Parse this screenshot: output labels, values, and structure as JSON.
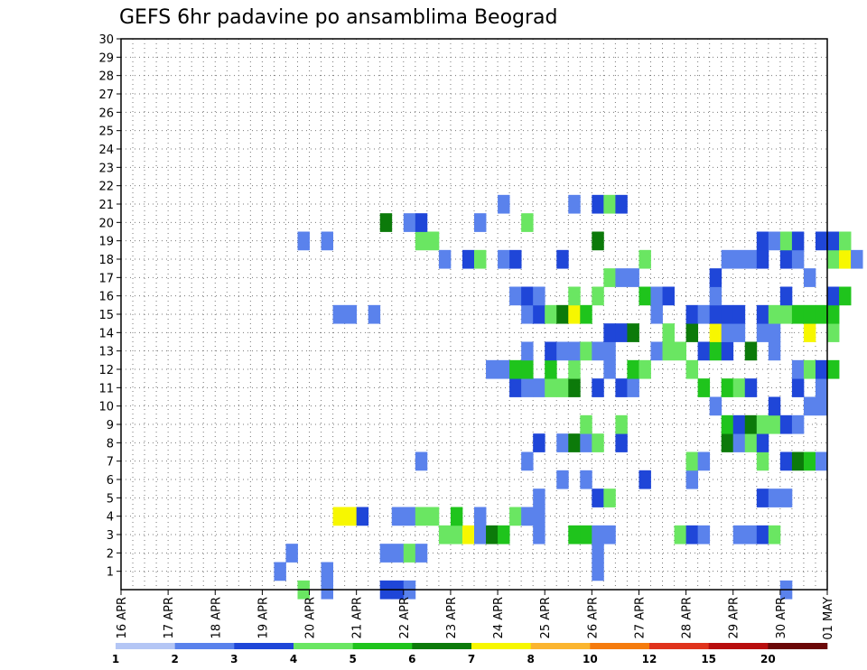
{
  "chart_data": {
    "type": "heatmap",
    "title": "GEFS 6hr padavine po ansamblima Beograd",
    "xlabel": "",
    "ylabel": "",
    "x_tick_labels": [
      "16 APR",
      "17 APR",
      "18 APR",
      "19 APR",
      "20 APR",
      "21 APR",
      "22 APR",
      "23 APR",
      "24 APR",
      "25 APR",
      "26 APR",
      "27 APR",
      "28 APR",
      "29 APR",
      "30 APR",
      "01 MAY"
    ],
    "x_step_hours": 6,
    "y_tick_labels": [
      "1",
      "2",
      "3",
      "4",
      "5",
      "6",
      "7",
      "8",
      "9",
      "10",
      "11",
      "12",
      "13",
      "14",
      "15",
      "16",
      "17",
      "18",
      "19",
      "20",
      "21",
      "22",
      "23",
      "24",
      "25",
      "26",
      "27",
      "28",
      "29",
      "30"
    ],
    "ylim": [
      0,
      30
    ],
    "grid": true,
    "colorbar": {
      "position": "bottom",
      "tick_labels": [
        "1",
        "2",
        "3",
        "4",
        "5",
        "6",
        "7",
        "8",
        "10",
        "12",
        "15",
        "20"
      ],
      "colors": [
        "#b4c6f5",
        "#5a82ec",
        "#1f46d8",
        "#6ae662",
        "#1fc41c",
        "#0c7a0a",
        "#f7f700",
        "#fbb52f",
        "#f57b0d",
        "#e0331c",
        "#b80e0e",
        "#6b0808"
      ]
    },
    "cells": [
      {
        "x": 15,
        "y": 0,
        "c": 3
      },
      {
        "x": 17,
        "y": 0,
        "c": 1
      },
      {
        "x": 22,
        "y": 0,
        "c": 2
      },
      {
        "x": 23,
        "y": 0,
        "c": 2
      },
      {
        "x": 24,
        "y": 0,
        "c": 1
      },
      {
        "x": 56,
        "y": 0,
        "c": 1
      },
      {
        "x": 13,
        "y": 1,
        "c": 1
      },
      {
        "x": 17,
        "y": 1,
        "c": 1
      },
      {
        "x": 40,
        "y": 1,
        "c": 1
      },
      {
        "x": 14,
        "y": 2,
        "c": 1
      },
      {
        "x": 22,
        "y": 2,
        "c": 1
      },
      {
        "x": 23,
        "y": 2,
        "c": 1
      },
      {
        "x": 24,
        "y": 2,
        "c": 3
      },
      {
        "x": 25,
        "y": 2,
        "c": 1
      },
      {
        "x": 40,
        "y": 2,
        "c": 1
      },
      {
        "x": 27,
        "y": 3,
        "c": 3
      },
      {
        "x": 28,
        "y": 3,
        "c": 3
      },
      {
        "x": 29,
        "y": 3,
        "c": 6
      },
      {
        "x": 30,
        "y": 3,
        "c": 1
      },
      {
        "x": 31,
        "y": 3,
        "c": 5
      },
      {
        "x": 32,
        "y": 3,
        "c": 4
      },
      {
        "x": 35,
        "y": 3,
        "c": 1
      },
      {
        "x": 38,
        "y": 3,
        "c": 4
      },
      {
        "x": 39,
        "y": 3,
        "c": 4
      },
      {
        "x": 40,
        "y": 3,
        "c": 1
      },
      {
        "x": 41,
        "y": 3,
        "c": 1
      },
      {
        "x": 47,
        "y": 3,
        "c": 3
      },
      {
        "x": 48,
        "y": 3,
        "c": 2
      },
      {
        "x": 49,
        "y": 3,
        "c": 1
      },
      {
        "x": 52,
        "y": 3,
        "c": 1
      },
      {
        "x": 53,
        "y": 3,
        "c": 1
      },
      {
        "x": 54,
        "y": 3,
        "c": 2
      },
      {
        "x": 55,
        "y": 3,
        "c": 3
      },
      {
        "x": 18,
        "y": 4,
        "c": 6
      },
      {
        "x": 19,
        "y": 4,
        "c": 6
      },
      {
        "x": 20,
        "y": 4,
        "c": 2
      },
      {
        "x": 23,
        "y": 4,
        "c": 1
      },
      {
        "x": 24,
        "y": 4,
        "c": 1
      },
      {
        "x": 25,
        "y": 4,
        "c": 3
      },
      {
        "x": 26,
        "y": 4,
        "c": 3
      },
      {
        "x": 28,
        "y": 4,
        "c": 4
      },
      {
        "x": 30,
        "y": 4,
        "c": 1
      },
      {
        "x": 33,
        "y": 4,
        "c": 3
      },
      {
        "x": 34,
        "y": 4,
        "c": 1
      },
      {
        "x": 35,
        "y": 4,
        "c": 1
      },
      {
        "x": 35,
        "y": 5,
        "c": 1
      },
      {
        "x": 40,
        "y": 5,
        "c": 2
      },
      {
        "x": 41,
        "y": 5,
        "c": 3
      },
      {
        "x": 54,
        "y": 5,
        "c": 2
      },
      {
        "x": 55,
        "y": 5,
        "c": 1
      },
      {
        "x": 56,
        "y": 5,
        "c": 1
      },
      {
        "x": 37,
        "y": 6,
        "c": 1
      },
      {
        "x": 39,
        "y": 6,
        "c": 1
      },
      {
        "x": 44,
        "y": 6,
        "c": 2
      },
      {
        "x": 48,
        "y": 6,
        "c": 1
      },
      {
        "x": 25,
        "y": 7,
        "c": 1
      },
      {
        "x": 34,
        "y": 7,
        "c": 1
      },
      {
        "x": 48,
        "y": 7,
        "c": 3
      },
      {
        "x": 49,
        "y": 7,
        "c": 1
      },
      {
        "x": 54,
        "y": 7,
        "c": 3
      },
      {
        "x": 56,
        "y": 7,
        "c": 2
      },
      {
        "x": 57,
        "y": 7,
        "c": 5
      },
      {
        "x": 58,
        "y": 7,
        "c": 4
      },
      {
        "x": 59,
        "y": 7,
        "c": 1
      },
      {
        "x": 35,
        "y": 8,
        "c": 2
      },
      {
        "x": 37,
        "y": 8,
        "c": 1
      },
      {
        "x": 38,
        "y": 8,
        "c": 5
      },
      {
        "x": 39,
        "y": 8,
        "c": 1
      },
      {
        "x": 40,
        "y": 8,
        "c": 3
      },
      {
        "x": 42,
        "y": 8,
        "c": 2
      },
      {
        "x": 51,
        "y": 8,
        "c": 5
      },
      {
        "x": 52,
        "y": 8,
        "c": 1
      },
      {
        "x": 53,
        "y": 8,
        "c": 3
      },
      {
        "x": 54,
        "y": 8,
        "c": 2
      },
      {
        "x": 39,
        "y": 9,
        "c": 3
      },
      {
        "x": 42,
        "y": 9,
        "c": 3
      },
      {
        "x": 51,
        "y": 9,
        "c": 4
      },
      {
        "x": 52,
        "y": 9,
        "c": 2
      },
      {
        "x": 53,
        "y": 9,
        "c": 5
      },
      {
        "x": 54,
        "y": 9,
        "c": 3
      },
      {
        "x": 55,
        "y": 9,
        "c": 3
      },
      {
        "x": 56,
        "y": 9,
        "c": 2
      },
      {
        "x": 57,
        "y": 9,
        "c": 1
      },
      {
        "x": 50,
        "y": 10,
        "c": 1
      },
      {
        "x": 55,
        "y": 10,
        "c": 2
      },
      {
        "x": 58,
        "y": 10,
        "c": 1
      },
      {
        "x": 59,
        "y": 10,
        "c": 1
      },
      {
        "x": 33,
        "y": 11,
        "c": 2
      },
      {
        "x": 34,
        "y": 11,
        "c": 1
      },
      {
        "x": 35,
        "y": 11,
        "c": 1
      },
      {
        "x": 36,
        "y": 11,
        "c": 3
      },
      {
        "x": 37,
        "y": 11,
        "c": 3
      },
      {
        "x": 38,
        "y": 11,
        "c": 5
      },
      {
        "x": 40,
        "y": 11,
        "c": 2
      },
      {
        "x": 42,
        "y": 11,
        "c": 2
      },
      {
        "x": 43,
        "y": 11,
        "c": 1
      },
      {
        "x": 49,
        "y": 11,
        "c": 4
      },
      {
        "x": 51,
        "y": 11,
        "c": 4
      },
      {
        "x": 52,
        "y": 11,
        "c": 3
      },
      {
        "x": 53,
        "y": 11,
        "c": 2
      },
      {
        "x": 57,
        "y": 11,
        "c": 2
      },
      {
        "x": 59,
        "y": 11,
        "c": 1
      },
      {
        "x": 31,
        "y": 12,
        "c": 1
      },
      {
        "x": 32,
        "y": 12,
        "c": 1
      },
      {
        "x": 33,
        "y": 12,
        "c": 4
      },
      {
        "x": 34,
        "y": 12,
        "c": 4
      },
      {
        "x": 36,
        "y": 12,
        "c": 4
      },
      {
        "x": 38,
        "y": 12,
        "c": 3
      },
      {
        "x": 41,
        "y": 12,
        "c": 1
      },
      {
        "x": 43,
        "y": 12,
        "c": 4
      },
      {
        "x": 44,
        "y": 12,
        "c": 3
      },
      {
        "x": 48,
        "y": 12,
        "c": 3
      },
      {
        "x": 57,
        "y": 12,
        "c": 1
      },
      {
        "x": 58,
        "y": 12,
        "c": 3
      },
      {
        "x": 59,
        "y": 12,
        "c": 2
      },
      {
        "x": 60,
        "y": 12,
        "c": 4
      },
      {
        "x": 34,
        "y": 13,
        "c": 1
      },
      {
        "x": 36,
        "y": 13,
        "c": 2
      },
      {
        "x": 37,
        "y": 13,
        "c": 1
      },
      {
        "x": 38,
        "y": 13,
        "c": 1
      },
      {
        "x": 39,
        "y": 13,
        "c": 3
      },
      {
        "x": 40,
        "y": 13,
        "c": 1
      },
      {
        "x": 41,
        "y": 13,
        "c": 1
      },
      {
        "x": 45,
        "y": 13,
        "c": 1
      },
      {
        "x": 46,
        "y": 13,
        "c": 3
      },
      {
        "x": 47,
        "y": 13,
        "c": 3
      },
      {
        "x": 49,
        "y": 13,
        "c": 2
      },
      {
        "x": 50,
        "y": 13,
        "c": 4
      },
      {
        "x": 51,
        "y": 13,
        "c": 2
      },
      {
        "x": 53,
        "y": 13,
        "c": 5
      },
      {
        "x": 55,
        "y": 13,
        "c": 1
      },
      {
        "x": 41,
        "y": 14,
        "c": 2
      },
      {
        "x": 42,
        "y": 14,
        "c": 2
      },
      {
        "x": 43,
        "y": 14,
        "c": 5
      },
      {
        "x": 46,
        "y": 14,
        "c": 3
      },
      {
        "x": 48,
        "y": 14,
        "c": 5
      },
      {
        "x": 50,
        "y": 14,
        "c": 6
      },
      {
        "x": 51,
        "y": 14,
        "c": 1
      },
      {
        "x": 52,
        "y": 14,
        "c": 1
      },
      {
        "x": 54,
        "y": 14,
        "c": 1
      },
      {
        "x": 55,
        "y": 14,
        "c": 1
      },
      {
        "x": 58,
        "y": 14,
        "c": 6
      },
      {
        "x": 60,
        "y": 14,
        "c": 3
      },
      {
        "x": 18,
        "y": 15,
        "c": 1
      },
      {
        "x": 19,
        "y": 15,
        "c": 1
      },
      {
        "x": 21,
        "y": 15,
        "c": 1
      },
      {
        "x": 34,
        "y": 15,
        "c": 1
      },
      {
        "x": 35,
        "y": 15,
        "c": 2
      },
      {
        "x": 36,
        "y": 15,
        "c": 3
      },
      {
        "x": 37,
        "y": 15,
        "c": 5
      },
      {
        "x": 38,
        "y": 15,
        "c": 6
      },
      {
        "x": 39,
        "y": 15,
        "c": 4
      },
      {
        "x": 45,
        "y": 15,
        "c": 1
      },
      {
        "x": 48,
        "y": 15,
        "c": 2
      },
      {
        "x": 49,
        "y": 15,
        "c": 1
      },
      {
        "x": 50,
        "y": 15,
        "c": 2
      },
      {
        "x": 51,
        "y": 15,
        "c": 2
      },
      {
        "x": 52,
        "y": 15,
        "c": 2
      },
      {
        "x": 54,
        "y": 15,
        "c": 2
      },
      {
        "x": 55,
        "y": 15,
        "c": 3
      },
      {
        "x": 56,
        "y": 15,
        "c": 3
      },
      {
        "x": 57,
        "y": 15,
        "c": 4
      },
      {
        "x": 58,
        "y": 15,
        "c": 4
      },
      {
        "x": 59,
        "y": 15,
        "c": 4
      },
      {
        "x": 60,
        "y": 15,
        "c": 4
      },
      {
        "x": 33,
        "y": 16,
        "c": 1
      },
      {
        "x": 34,
        "y": 16,
        "c": 2
      },
      {
        "x": 35,
        "y": 16,
        "c": 1
      },
      {
        "x": 38,
        "y": 16,
        "c": 3
      },
      {
        "x": 40,
        "y": 16,
        "c": 3
      },
      {
        "x": 44,
        "y": 16,
        "c": 4
      },
      {
        "x": 45,
        "y": 16,
        "c": 1
      },
      {
        "x": 46,
        "y": 16,
        "c": 2
      },
      {
        "x": 50,
        "y": 16,
        "c": 1
      },
      {
        "x": 56,
        "y": 16,
        "c": 2
      },
      {
        "x": 60,
        "y": 16,
        "c": 2
      },
      {
        "x": 61,
        "y": 16,
        "c": 4
      },
      {
        "x": 41,
        "y": 17,
        "c": 3
      },
      {
        "x": 42,
        "y": 17,
        "c": 1
      },
      {
        "x": 43,
        "y": 17,
        "c": 1
      },
      {
        "x": 50,
        "y": 17,
        "c": 2
      },
      {
        "x": 58,
        "y": 17,
        "c": 1
      },
      {
        "x": 27,
        "y": 18,
        "c": 1
      },
      {
        "x": 29,
        "y": 18,
        "c": 2
      },
      {
        "x": 30,
        "y": 18,
        "c": 3
      },
      {
        "x": 32,
        "y": 18,
        "c": 1
      },
      {
        "x": 33,
        "y": 18,
        "c": 2
      },
      {
        "x": 37,
        "y": 18,
        "c": 2
      },
      {
        "x": 44,
        "y": 18,
        "c": 3
      },
      {
        "x": 51,
        "y": 18,
        "c": 1
      },
      {
        "x": 52,
        "y": 18,
        "c": 1
      },
      {
        "x": 53,
        "y": 18,
        "c": 1
      },
      {
        "x": 54,
        "y": 18,
        "c": 2
      },
      {
        "x": 56,
        "y": 18,
        "c": 2
      },
      {
        "x": 57,
        "y": 18,
        "c": 1
      },
      {
        "x": 60,
        "y": 18,
        "c": 3
      },
      {
        "x": 61,
        "y": 18,
        "c": 6
      },
      {
        "x": 62,
        "y": 18,
        "c": 1
      },
      {
        "x": 15,
        "y": 19,
        "c": 1
      },
      {
        "x": 17,
        "y": 19,
        "c": 1
      },
      {
        "x": 25,
        "y": 19,
        "c": 3
      },
      {
        "x": 26,
        "y": 19,
        "c": 3
      },
      {
        "x": 40,
        "y": 19,
        "c": 5
      },
      {
        "x": 54,
        "y": 19,
        "c": 2
      },
      {
        "x": 55,
        "y": 19,
        "c": 1
      },
      {
        "x": 56,
        "y": 19,
        "c": 3
      },
      {
        "x": 57,
        "y": 19,
        "c": 2
      },
      {
        "x": 59,
        "y": 19,
        "c": 2
      },
      {
        "x": 60,
        "y": 19,
        "c": 2
      },
      {
        "x": 61,
        "y": 19,
        "c": 3
      },
      {
        "x": 22,
        "y": 20,
        "c": 5
      },
      {
        "x": 24,
        "y": 20,
        "c": 1
      },
      {
        "x": 25,
        "y": 20,
        "c": 2
      },
      {
        "x": 30,
        "y": 20,
        "c": 1
      },
      {
        "x": 34,
        "y": 20,
        "c": 3
      },
      {
        "x": 32,
        "y": 21,
        "c": 1
      },
      {
        "x": 38,
        "y": 21,
        "c": 1
      },
      {
        "x": 40,
        "y": 21,
        "c": 2
      },
      {
        "x": 41,
        "y": 21,
        "c": 3
      },
      {
        "x": 42,
        "y": 21,
        "c": 2
      }
    ]
  }
}
